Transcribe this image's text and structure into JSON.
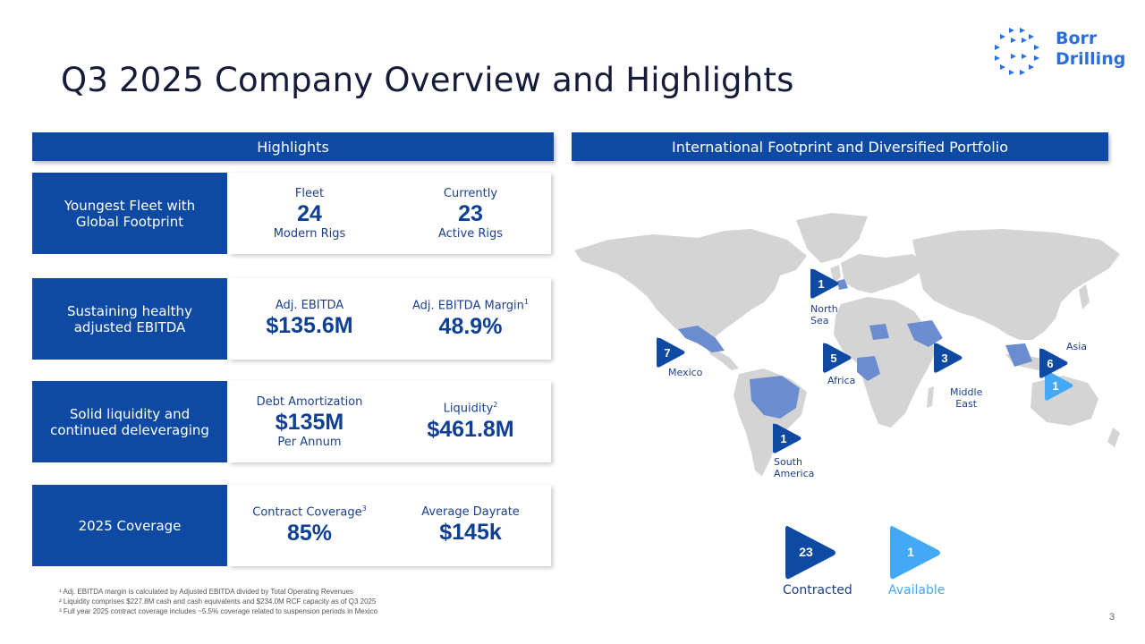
{
  "title": "Q3 2025 Company Overview and Highlights",
  "logo": {
    "line1": "Borr",
    "line2": "Drilling",
    "color": "#2a6fe0"
  },
  "colors": {
    "primary": "#0e4aa3",
    "light": "#43a9f6",
    "map_gray": "#d4d4d4",
    "map_highlight": "#6b8ccf"
  },
  "left_section": {
    "header": "Highlights"
  },
  "right_section": {
    "header": "International Footprint and Diversified Portfolio"
  },
  "rows": [
    {
      "label": "Youngest Fleet with\nGlobal Footprint",
      "left": {
        "label": "Fleet",
        "value": "24",
        "sub": "Modern Rigs"
      },
      "right": {
        "label": "Currently",
        "value": "23",
        "sub": "Active Rigs"
      }
    },
    {
      "label": "Sustaining healthy\nadjusted EBITDA",
      "left": {
        "label": "Adj. EBITDA",
        "value": "$135.6M",
        "sub": ""
      },
      "right": {
        "label": "Adj. EBITDA Margin",
        "sup": "1",
        "value": "48.9%",
        "sub": ""
      }
    },
    {
      "label": "Solid liquidity and\ncontinued deleveraging",
      "left": {
        "label": "Debt Amortization",
        "value": "$135M",
        "sub": "Per Annum"
      },
      "right": {
        "label": "Liquidity",
        "sup": "2",
        "value": "$461.8M",
        "sub": ""
      }
    },
    {
      "label": "2025 Coverage",
      "left": {
        "label": "Contract Coverage",
        "sup": "3",
        "value": "85%",
        "sub": ""
      },
      "right": {
        "label": "Average Dayrate",
        "value": "$145k",
        "sub": ""
      }
    }
  ],
  "footnotes": [
    "¹ Adj. EBITDA margin is calculated by Adjusted EBITDA divided by Total Operating Revenues",
    "² Liquidity comprises $227.8M cash and cash equivalents and $234.0M RCF capacity as of Q3 2025",
    "³ Full year 2025 contract coverage includes ~5.5% coverage related to suspension periods in Mexico"
  ],
  "page_number": "3",
  "regions": [
    {
      "name": "North\nSea",
      "count": "1",
      "status": "contracted"
    },
    {
      "name": "Mexico",
      "count": "7",
      "status": "contracted"
    },
    {
      "name": "Africa",
      "count": "5",
      "status": "contracted"
    },
    {
      "name": "Middle\nEast",
      "count": "3",
      "status": "contracted"
    },
    {
      "name": "Asia",
      "count": "6",
      "status": "contracted"
    },
    {
      "name": "",
      "count": "1",
      "status": "available"
    },
    {
      "name": "South\nAmerica",
      "count": "1",
      "status": "contracted"
    }
  ],
  "legend": {
    "contracted": {
      "count": "23",
      "label": "Contracted",
      "color": "#0e4aa3"
    },
    "available": {
      "count": "1",
      "label": "Available",
      "color": "#43a9f6"
    }
  }
}
